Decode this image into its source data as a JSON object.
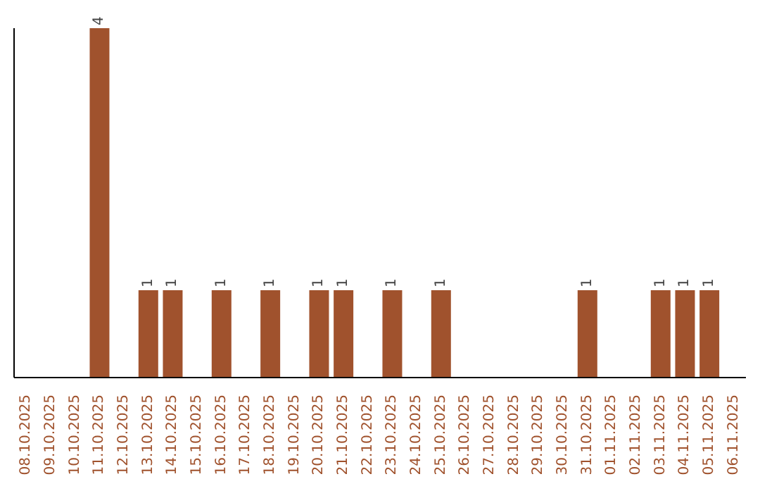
{
  "chart_data": {
    "type": "bar",
    "categories": [
      "08.10.2025",
      "09.10.2025",
      "10.10.2025",
      "11.10.2025",
      "12.10.2025",
      "13.10.2025",
      "14.10.2025",
      "15.10.2025",
      "16.10.2025",
      "17.10.2025",
      "18.10.2025",
      "19.10.2025",
      "20.10.2025",
      "21.10.2025",
      "22.10.2025",
      "23.10.2025",
      "24.10.2025",
      "25.10.2025",
      "26.10.2025",
      "27.10.2025",
      "28.10.2025",
      "29.10.2025",
      "30.10.2025",
      "31.10.2025",
      "01.11.2025",
      "02.11.2025",
      "03.11.2025",
      "04.11.2025",
      "05.11.2025",
      "06.11.2025"
    ],
    "values": [
      0,
      0,
      0,
      4,
      0,
      1,
      1,
      0,
      1,
      0,
      1,
      0,
      1,
      1,
      0,
      1,
      0,
      1,
      0,
      0,
      0,
      0,
      0,
      1,
      0,
      0,
      1,
      1,
      1,
      0
    ],
    "value_labels": [
      null,
      null,
      null,
      "4",
      null,
      "1",
      "1",
      null,
      "1",
      null,
      "1",
      null,
      "1",
      "1",
      null,
      "1",
      null,
      "1",
      null,
      null,
      null,
      null,
      null,
      "1",
      null,
      null,
      "1",
      "1",
      "1",
      null
    ],
    "color": "#a0522d",
    "grid": false,
    "legend": false
  }
}
